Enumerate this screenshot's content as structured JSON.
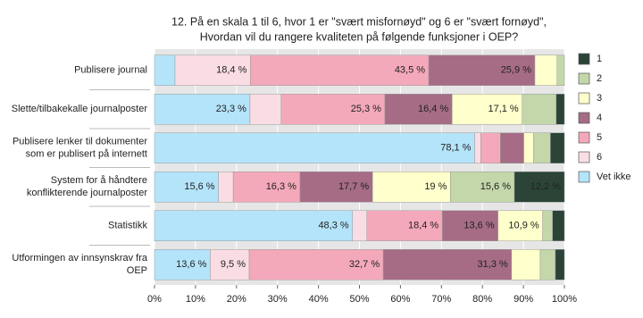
{
  "chart_data": {
    "type": "stacked-bar-horizontal",
    "title": [
      "12. På en skala 1 til 6, hvor 1 er \"svært misfornøyd\" og 6 er \"svært fornøyd\",",
      "Hvordan vil du rangere kvaliteten på følgende funksjoner i OEP?"
    ],
    "categories": [
      [
        "Publisere journal"
      ],
      [
        "Slette/tilbakekalle journalposter"
      ],
      [
        "Publisere lenker til dokumenter",
        "som er publisert på internett"
      ],
      [
        "System for å håndtere",
        "konflikterende journalposter"
      ],
      [
        "Statistikk"
      ],
      [
        "Utformingen av innsynskrav fra",
        "OEP"
      ]
    ],
    "series": [
      {
        "name": "1",
        "color": "#2b4437",
        "values": [
          0,
          2.0,
          3.4,
          12.2,
          2.9,
          2.2
        ],
        "value_labels": [
          null,
          null,
          null,
          "12,2 %",
          null,
          null
        ]
      },
      {
        "name": "2",
        "color": "#c3d7aa",
        "values": [
          1.8,
          8.3,
          4.1,
          15.6,
          2.4,
          3.7
        ],
        "value_labels": [
          null,
          null,
          null,
          "15,6 %",
          null,
          null
        ]
      },
      {
        "name": "3",
        "color": "#ffffcc",
        "values": [
          5.4,
          17.1,
          2.4,
          19,
          10.9,
          7.0
        ],
        "value_labels": [
          null,
          "17,1 %",
          null,
          "19 %",
          "10,9 %",
          null
        ]
      },
      {
        "name": "4",
        "color": "#a66c86",
        "values": [
          25.9,
          16.4,
          5.7,
          17.7,
          13.6,
          31.3
        ],
        "value_labels": [
          "25,9 %",
          "16,4 %",
          null,
          "17,7 %",
          "13,6 %",
          "31,3 %"
        ]
      },
      {
        "name": "5",
        "color": "#f4a9ba",
        "values": [
          43.5,
          25.3,
          4.8,
          16.3,
          18.4,
          32.7
        ],
        "value_labels": [
          "43,5 %",
          "25,3 %",
          null,
          "16,3 %",
          "18,4 %",
          "32,7 %"
        ]
      },
      {
        "name": "6",
        "color": "#fadde4",
        "values": [
          18.4,
          7.6,
          1.5,
          3.6,
          3.5,
          9.5
        ],
        "value_labels": [
          "18,4 %",
          null,
          null,
          null,
          null,
          "9,5 %"
        ]
      },
      {
        "name": "Vet ikke",
        "color": "#b4e4fa",
        "values": [
          5.0,
          23.3,
          78.1,
          15.6,
          48.3,
          13.6
        ],
        "value_labels": [
          null,
          "23,3 %",
          "78,1 %",
          "15,6 %",
          "48,3 %",
          "13,6 %"
        ]
      }
    ],
    "xlim": [
      0,
      100
    ],
    "xticks": [
      {
        "value": 0,
        "label": "0%"
      },
      {
        "value": 10,
        "label": "10%"
      },
      {
        "value": 20,
        "label": "20%"
      },
      {
        "value": 30,
        "label": "30%"
      },
      {
        "value": 40,
        "label": "40%"
      },
      {
        "value": 50,
        "label": "50%"
      },
      {
        "value": 60,
        "label": "60%"
      },
      {
        "value": 70,
        "label": "70%"
      },
      {
        "value": 80,
        "label": "80%"
      },
      {
        "value": 90,
        "label": "90%"
      },
      {
        "value": 100,
        "label": "100%"
      }
    ],
    "grid": true,
    "legend": "right"
  }
}
